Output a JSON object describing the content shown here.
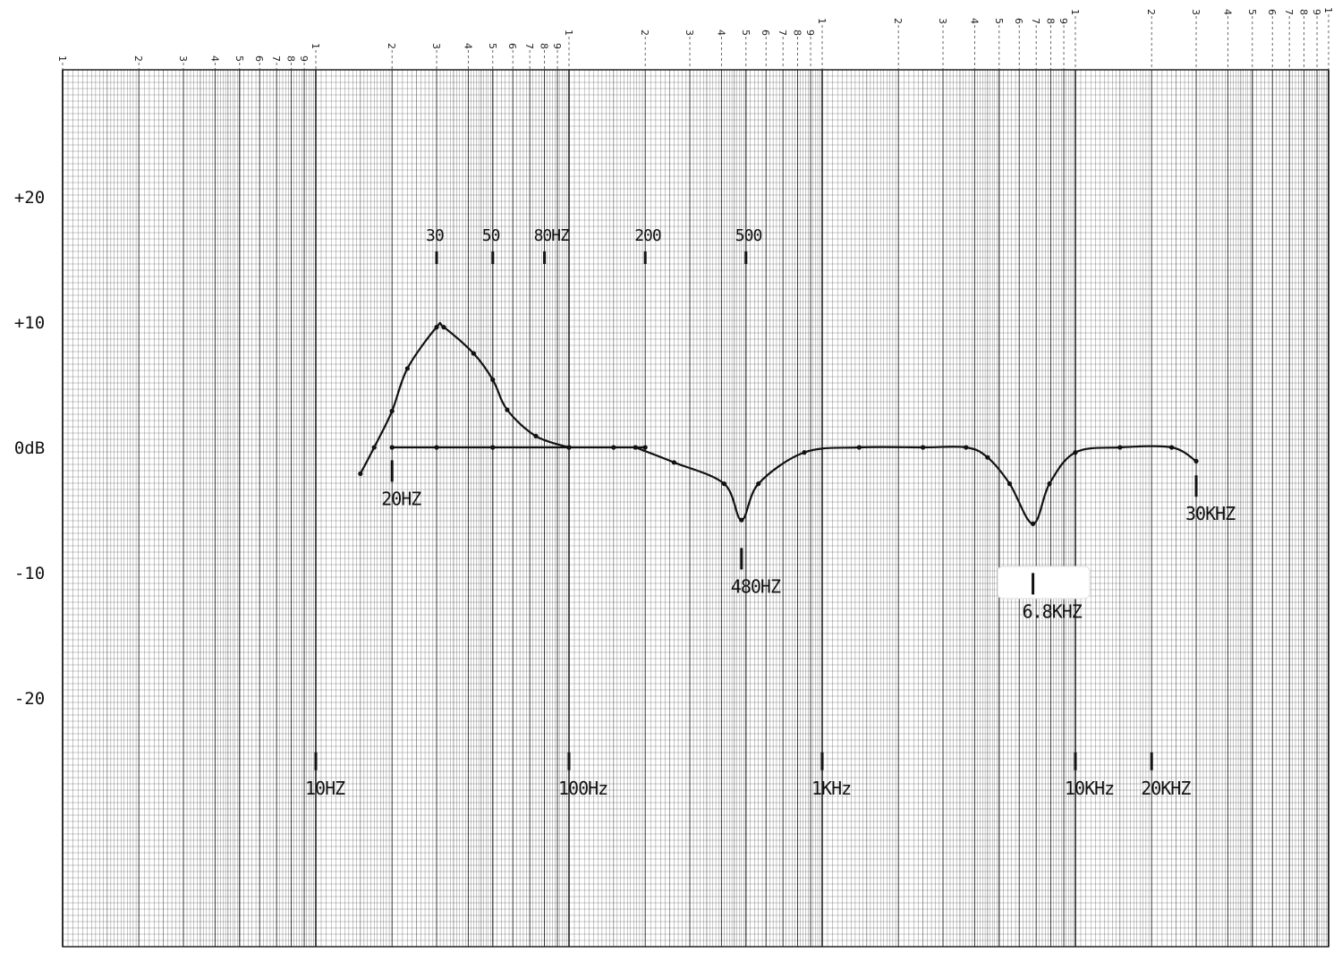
{
  "chart_data": {
    "type": "line",
    "title": "",
    "xlabel": "",
    "ylabel": "",
    "x_scale": "log",
    "xlim_hz": [
      1,
      100000
    ],
    "ylim_db": [
      -40,
      30
    ],
    "grid": true,
    "paper_scale_labels": [
      "1",
      "2",
      "3",
      "4",
      "5",
      "6",
      "7",
      "8",
      "9"
    ],
    "y_tick_labels": [
      {
        "db": 20,
        "label": "+20"
      },
      {
        "db": 10,
        "label": "+10"
      },
      {
        "db": 0,
        "label": "0dB"
      },
      {
        "db": -10,
        "label": "-10"
      },
      {
        "db": -20,
        "label": "-20"
      }
    ],
    "series": [
      {
        "points": [
          [
            15,
            -2.1
          ],
          [
            17,
            0
          ],
          [
            20,
            2.9
          ],
          [
            23,
            6.3
          ],
          [
            30,
            9.6
          ],
          [
            32,
            9.6
          ],
          [
            42,
            7.5
          ],
          [
            50,
            5.4
          ],
          [
            57,
            3.0
          ],
          [
            74,
            0.9
          ],
          [
            100,
            0
          ]
        ]
      },
      {
        "points": [
          [
            20,
            0
          ],
          [
            30,
            0
          ],
          [
            50,
            0
          ],
          [
            100,
            0
          ],
          [
            150,
            0
          ],
          [
            200,
            0
          ]
        ]
      },
      {
        "points": [
          [
            183,
            0
          ],
          [
            260,
            -1.2
          ],
          [
            410,
            -2.9
          ],
          [
            480,
            -5.8
          ],
          [
            560,
            -2.9
          ],
          [
            850,
            -0.4
          ],
          [
            1400,
            0
          ],
          [
            2500,
            0
          ],
          [
            3700,
            0
          ],
          [
            4500,
            -0.8
          ],
          [
            5500,
            -2.9
          ],
          [
            6800,
            -6.1
          ],
          [
            7900,
            -2.9
          ],
          [
            10000,
            -0.4
          ],
          [
            15000,
            0
          ],
          [
            24000,
            0
          ],
          [
            30000,
            -1.1
          ]
        ]
      }
    ],
    "annotations": [
      {
        "text": "30",
        "hz": 30,
        "db": 16.5,
        "marker": true
      },
      {
        "text": "50",
        "hz": 50,
        "db": 16.5,
        "marker": true
      },
      {
        "text": "80HZ",
        "hz": 80,
        "db": 16.5,
        "marker": true
      },
      {
        "text": "200",
        "hz": 200,
        "db": 16.5,
        "marker": true
      },
      {
        "text": "500",
        "hz": 500,
        "db": 16.5,
        "marker": true
      },
      {
        "text": "20HZ",
        "hz": 20,
        "db": -4.6,
        "marker": true
      },
      {
        "text": "480HZ",
        "hz": 480,
        "db": -11.6,
        "marker": true
      },
      {
        "text": "6.8KHZ",
        "hz": 6800,
        "db": -13.6,
        "marker": true
      },
      {
        "text": "30KHZ",
        "hz": 30000,
        "db": -5.8,
        "marker": true
      },
      {
        "text": "10HZ",
        "hz": 10,
        "db": -27.7,
        "marker": true
      },
      {
        "text": "100Hz",
        "hz": 100,
        "db": -27.7,
        "marker": true
      },
      {
        "text": "1KHz",
        "hz": 1000,
        "db": -27.7,
        "marker": true
      },
      {
        "text": "10KHz",
        "hz": 10000,
        "db": -27.7,
        "marker": true
      },
      {
        "text": "20KHZ",
        "hz": 20000,
        "db": -27.7,
        "marker": true
      }
    ],
    "line_color": "#111111",
    "grid_color": "#222222",
    "redaction_color": "#ffffff"
  }
}
